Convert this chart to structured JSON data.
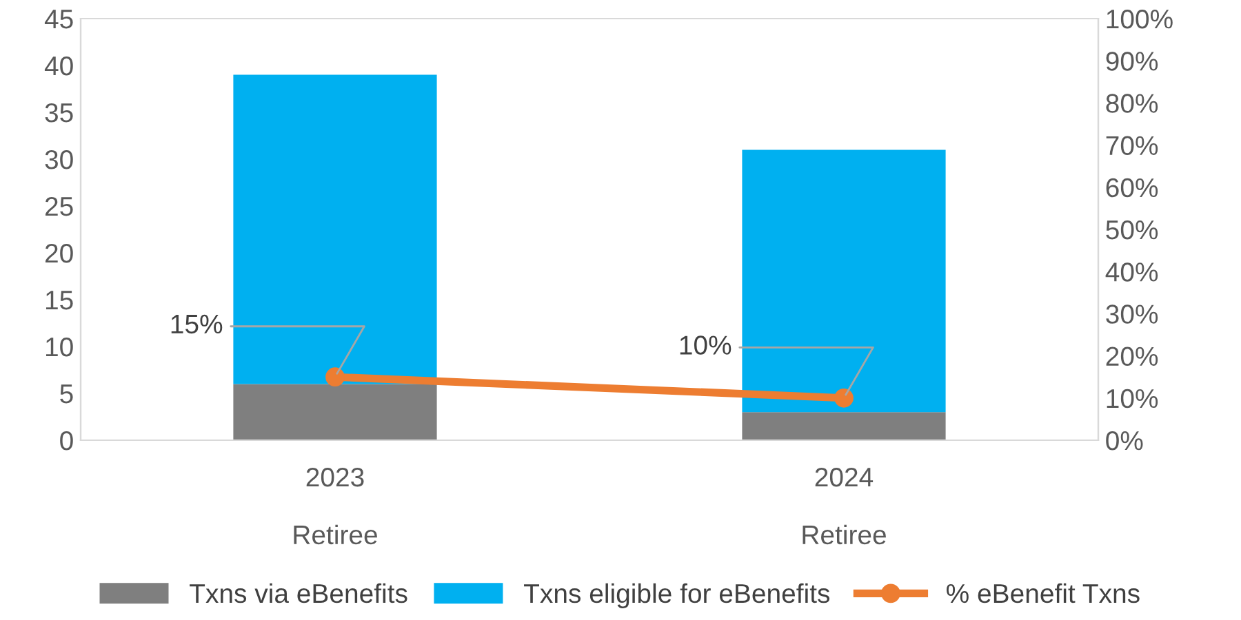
{
  "chart_data": {
    "type": "bar",
    "stacked": true,
    "categories": [
      "2023\n\nRetiree",
      "2024\n\nRetiree"
    ],
    "series": [
      {
        "name": "Txns via eBenefits",
        "color": "#7f7f7f",
        "values": [
          6,
          3
        ]
      },
      {
        "name": "Txns eligible for eBenefits",
        "color": "#00b0f0",
        "values": [
          33,
          28
        ]
      },
      {
        "name": "% eBenefit Txns",
        "type": "line",
        "axis": "y2",
        "color": "#ed7d31",
        "values": [
          15,
          10
        ],
        "value_labels": [
          "15%",
          "10%"
        ],
        "marker": "circle",
        "line_style": "solid"
      }
    ],
    "ylim": [
      0,
      45
    ],
    "yticks": [
      0,
      5,
      10,
      15,
      20,
      25,
      30,
      35,
      40,
      45
    ],
    "y2lim": [
      0,
      100
    ],
    "y2ticks": [
      {
        "value": 0,
        "label": "0%"
      },
      {
        "value": 10,
        "label": "10%"
      },
      {
        "value": 20,
        "label": "20%"
      },
      {
        "value": 30,
        "label": "30%"
      },
      {
        "value": 40,
        "label": "40%"
      },
      {
        "value": 50,
        "label": "50%"
      },
      {
        "value": 60,
        "label": "60%"
      },
      {
        "value": 70,
        "label": "70%"
      },
      {
        "value": 80,
        "label": "80%"
      },
      {
        "value": 90,
        "label": "90%"
      },
      {
        "value": 100,
        "label": "100%"
      }
    ],
    "grid": false,
    "legend": "bottom"
  }
}
